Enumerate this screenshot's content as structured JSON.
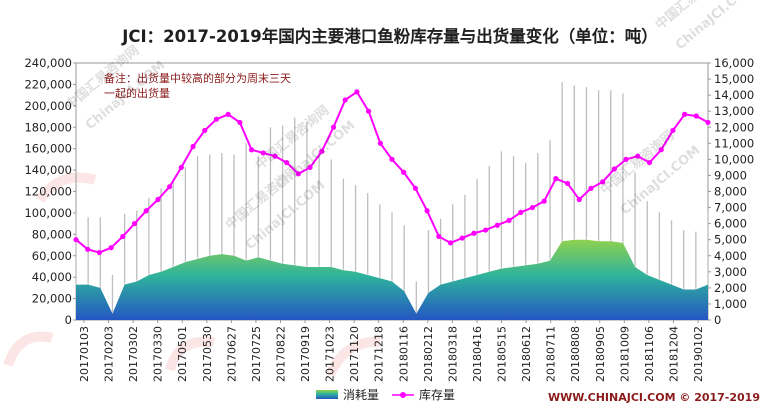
{
  "chart_data": {
    "type": "area+line",
    "title": "JCI：2017-2019年国内主要港口鱼粉库存量与出货量变化（单位：吨）",
    "annotation": "备注：出货量中较高的部分为周末三天一起的出货量",
    "annotation_lines": [
      "备注：出货量中较高的部分为周末三天",
      "一起的出货量"
    ],
    "left_axis": {
      "ticks": [
        "0",
        "20,000",
        "40,000",
        "60,000",
        "80,000",
        "100,000",
        "120,000",
        "140,000",
        "160,000",
        "180,000",
        "200,000",
        "220,000",
        "240,000"
      ],
      "range": [
        0,
        240000
      ]
    },
    "right_axis": {
      "ticks": [
        "0",
        "1,000",
        "2,000",
        "3,000",
        "4,000",
        "5,000",
        "6,000",
        "7,000",
        "8,000",
        "9,000",
        "10,000",
        "11,000",
        "12,000",
        "13,000",
        "14,000",
        "15,000",
        "16,000"
      ],
      "range": [
        0,
        16000
      ]
    },
    "x_ticks": [
      "20170103",
      "20170203",
      "20170302",
      "20170330",
      "20170501",
      "20170530",
      "20170627",
      "20170725",
      "20170822",
      "20170919",
      "20171023",
      "20171120",
      "20171218",
      "20180116",
      "20180212",
      "20180318",
      "20180416",
      "20180515",
      "20180612",
      "20180711",
      "20180808",
      "20180905",
      "20181009",
      "20181106",
      "20181204",
      "20190102"
    ],
    "series": [
      {
        "name": "消耗量",
        "axis": "right",
        "base_values": [
          2200,
          2200,
          2000,
          400,
          2200,
          2400,
          2800,
          3000,
          3300,
          3600,
          3800,
          4000,
          4100,
          4000,
          3700,
          3900,
          3700,
          3500,
          3400,
          3300,
          3300,
          3300,
          3100,
          3000,
          2800,
          2600,
          2400,
          1800,
          400,
          1700,
          2200,
          2400,
          2600,
          2800,
          3000,
          3200,
          3300,
          3400,
          3500,
          3700,
          4900,
          5000,
          5000,
          4900,
          4900,
          4800,
          3300,
          2800,
          2500,
          2200,
          1900,
          1900,
          2200
        ],
        "peak_values": [
          6700,
          6400,
          6400,
          2800,
          6600,
          6800,
          7600,
          8200,
          8800,
          9500,
          10200,
          10300,
          10400,
          10300,
          11000,
          10200,
          12000,
          12100,
          12600,
          12300,
          10500,
          10000,
          8800,
          8400,
          7900,
          7200,
          6700,
          5900,
          2400,
          5600,
          6300,
          7200,
          7800,
          8800,
          9600,
          10500,
          10200,
          9800,
          10400,
          11200,
          14800,
          14600,
          14500,
          14300,
          14300,
          14100,
          9200,
          7400,
          6700,
          6200,
          5600,
          5500,
          6800
        ]
      },
      {
        "name": "库存量",
        "axis": "right",
        "values": [
          5000,
          4400,
          4200,
          4500,
          5200,
          6000,
          6800,
          7500,
          8300,
          9500,
          10800,
          11800,
          12500,
          12800,
          12300,
          10600,
          10400,
          10200,
          9800,
          9100,
          9500,
          10500,
          12000,
          13700,
          14200,
          13000,
          11000,
          10000,
          9200,
          8200,
          6800,
          5200,
          4800,
          5100,
          5400,
          5600,
          5900,
          6200,
          6700,
          7000,
          7400,
          8800,
          8500,
          7500,
          8200,
          8600,
          9400,
          10000,
          10200,
          9800,
          10600,
          11800,
          12800,
          12700,
          12300
        ]
      }
    ],
    "colors": {
      "area_top": "#8fd14f",
      "area_mid": "#2fb39c",
      "area_bottom": "#2456c2",
      "spike": "#bdbdbd",
      "line": "#ff00ff",
      "title": "#1f1f1f",
      "annotation": "#8b1a1a"
    },
    "footer_text": "WWW.CHINAJCI.COM © 2017-2019",
    "watermark_lines": [
      "中国汇易咨询网",
      "ChinaJCI.COM"
    ],
    "grid": false,
    "legend_position": "bottom-center"
  }
}
